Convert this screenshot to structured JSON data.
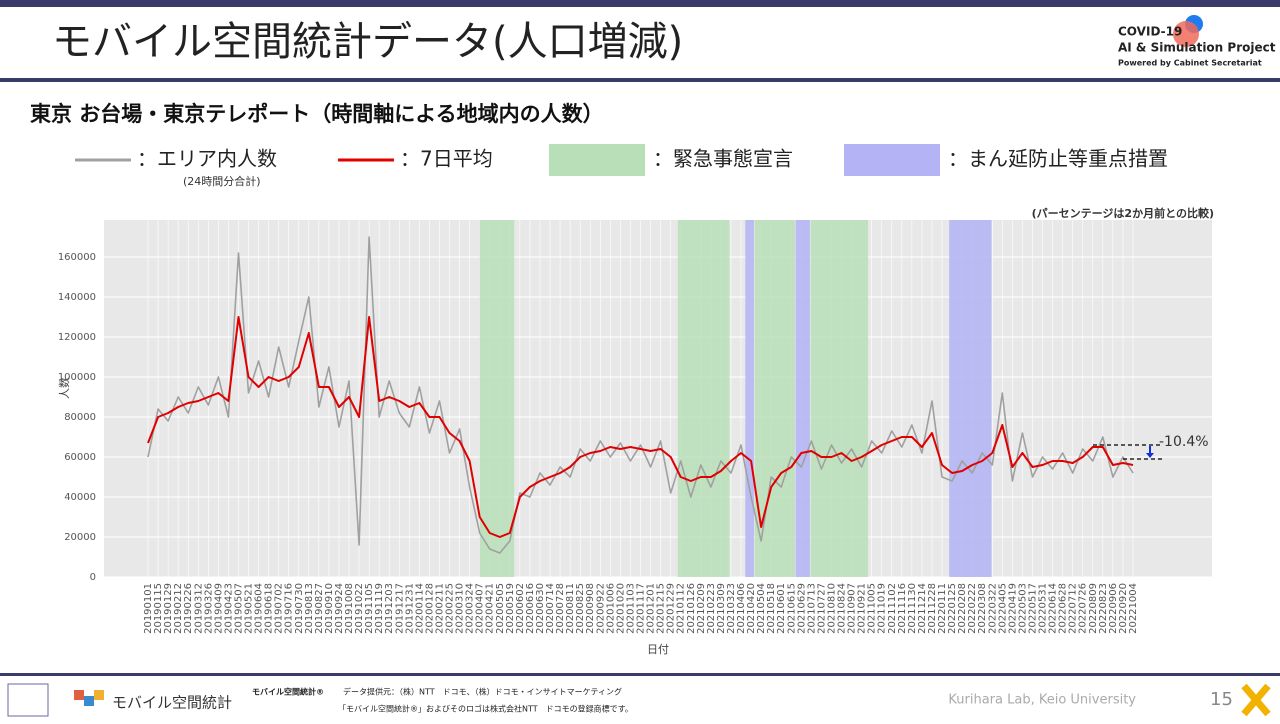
{
  "header": {
    "title": "モバイル空間統計データ(人口増減)",
    "logo_line1": "COVID-19",
    "logo_line2": "AI & Simulation Project",
    "logo_line3": "Powered by Cabinet Secretariat"
  },
  "subtitle": "東京 お台場・東京テレポート（時間軸による地域内の人数）",
  "chart_data": {
    "type": "line",
    "note": "(パーセンテージは2か月前との比較)",
    "y_label": "人数",
    "x_label": "日付",
    "legend_note": "(24時間分合計)",
    "x": [
      "20190101",
      "20190115",
      "20190129",
      "20190212",
      "20190226",
      "20190312",
      "20190326",
      "20190409",
      "20190423",
      "20190507",
      "20190521",
      "20190604",
      "20190618",
      "20190702",
      "20190716",
      "20190730",
      "20190813",
      "20190827",
      "20190910",
      "20190924",
      "20191008",
      "20191022",
      "20191105",
      "20191119",
      "20191203",
      "20191217",
      "20191231",
      "20200114",
      "20200128",
      "20200211",
      "20200225",
      "20200310",
      "20200324",
      "20200407",
      "20200421",
      "20200505",
      "20200519",
      "20200602",
      "20200616",
      "20200630",
      "20200714",
      "20200728",
      "20200811",
      "20200825",
      "20200908",
      "20200922",
      "20201006",
      "20201020",
      "20201103",
      "20201117",
      "20201201",
      "20201215",
      "20201229",
      "20210112",
      "20210126",
      "20210209",
      "20210223",
      "20210309",
      "20210323",
      "20210406",
      "20210420",
      "20210504",
      "20210518",
      "20210601",
      "20210615",
      "20210629",
      "20210713",
      "20210727",
      "20210810",
      "20210824",
      "20210907",
      "20210921",
      "20211005",
      "20211019",
      "20211102",
      "20211116",
      "20211130",
      "20211214",
      "20211228",
      "20220111",
      "20220125",
      "20220208",
      "20220222",
      "20220308",
      "20220322",
      "20220405",
      "20220419",
      "20220503",
      "20220517",
      "20220531",
      "20220614",
      "20220628",
      "20220712",
      "20220726",
      "20220809",
      "20220823",
      "20220906",
      "20220920",
      "20221004"
    ],
    "series": [
      {
        "name": "：エリア内人数",
        "color": "#a0a0a0",
        "values": [
          60000,
          84000,
          78000,
          90000,
          82000,
          95000,
          86000,
          100000,
          80000,
          162000,
          92000,
          108000,
          90000,
          115000,
          95000,
          118000,
          140000,
          85000,
          105000,
          75000,
          98000,
          16000,
          170000,
          80000,
          98000,
          82000,
          75000,
          95000,
          72000,
          88000,
          62000,
          74000,
          45000,
          22000,
          14000,
          12000,
          18000,
          42000,
          40000,
          52000,
          46000,
          55000,
          50000,
          64000,
          58000,
          68000,
          60000,
          67000,
          58000,
          66000,
          55000,
          68000,
          42000,
          58000,
          40000,
          56000,
          45000,
          58000,
          52000,
          66000,
          40000,
          18000,
          50000,
          45000,
          60000,
          55000,
          68000,
          54000,
          66000,
          57000,
          64000,
          55000,
          68000,
          62000,
          73000,
          65000,
          76000,
          62000,
          88000,
          50000,
          48000,
          58000,
          52000,
          62000,
          56000,
          92000,
          48000,
          72000,
          50000,
          60000,
          54000,
          62000,
          52000,
          64000,
          58000,
          70000,
          50000,
          60000,
          52000
        ]
      },
      {
        "name": "：7日平均",
        "color": "#e00000",
        "values": [
          67000,
          80000,
          82000,
          85000,
          87000,
          88000,
          90000,
          92000,
          88000,
          130000,
          100000,
          95000,
          100000,
          98000,
          100000,
          105000,
          122000,
          95000,
          95000,
          85000,
          90000,
          80000,
          130000,
          88000,
          90000,
          88000,
          85000,
          87000,
          80000,
          80000,
          72000,
          68000,
          58000,
          30000,
          22000,
          20000,
          22000,
          40000,
          45000,
          48000,
          50000,
          52000,
          55000,
          60000,
          62000,
          63000,
          65000,
          64000,
          65000,
          64000,
          63000,
          64000,
          60000,
          50000,
          48000,
          50000,
          50000,
          53000,
          58000,
          62000,
          58000,
          25000,
          45000,
          52000,
          55000,
          62000,
          63000,
          60000,
          60000,
          62000,
          58000,
          60000,
          63000,
          66000,
          68000,
          70000,
          70000,
          65000,
          72000,
          56000,
          52000,
          53000,
          56000,
          58000,
          62000,
          76000,
          55000,
          62000,
          55000,
          56000,
          58000,
          58000,
          57000,
          60000,
          65000,
          65000,
          56000,
          57000,
          56000
        ]
      }
    ],
    "bands": [
      {
        "name": "：緊急事態宣言",
        "color": "#b9dfb9",
        "periods": [
          [
            "20200407",
            "20200525"
          ],
          [
            "20210108",
            "20210321"
          ],
          [
            "20210425",
            "20210620"
          ],
          [
            "20210712",
            "20210930"
          ]
        ]
      },
      {
        "name": "：まん延防止等重点措置",
        "color": "#b3b3f5",
        "periods": [
          [
            "20210412",
            "20210424"
          ],
          [
            "20210621",
            "20210711"
          ],
          [
            "20220121",
            "20220321"
          ]
        ]
      }
    ],
    "annotation": {
      "text": "-10.4%",
      "from": 66000,
      "to": 59000
    },
    "ylim": [
      0,
      178500
    ],
    "yticks": [
      0,
      20000,
      40000,
      60000,
      80000,
      100000,
      120000,
      140000,
      160000
    ],
    "grid": true
  },
  "footer": {
    "logo": "モバイル空間統計",
    "mark": "モバイル空間統計®",
    "source": "データ提供元：（株）NTT　ドコモ、（株）ドコモ・インサイトマーケティング",
    "trademark": "「モバイル空間統計®」およびそのロゴは株式会社NTT　ドコモの登録商標です。",
    "lab": "Kurihara Lab, Keio University",
    "page": "15"
  }
}
